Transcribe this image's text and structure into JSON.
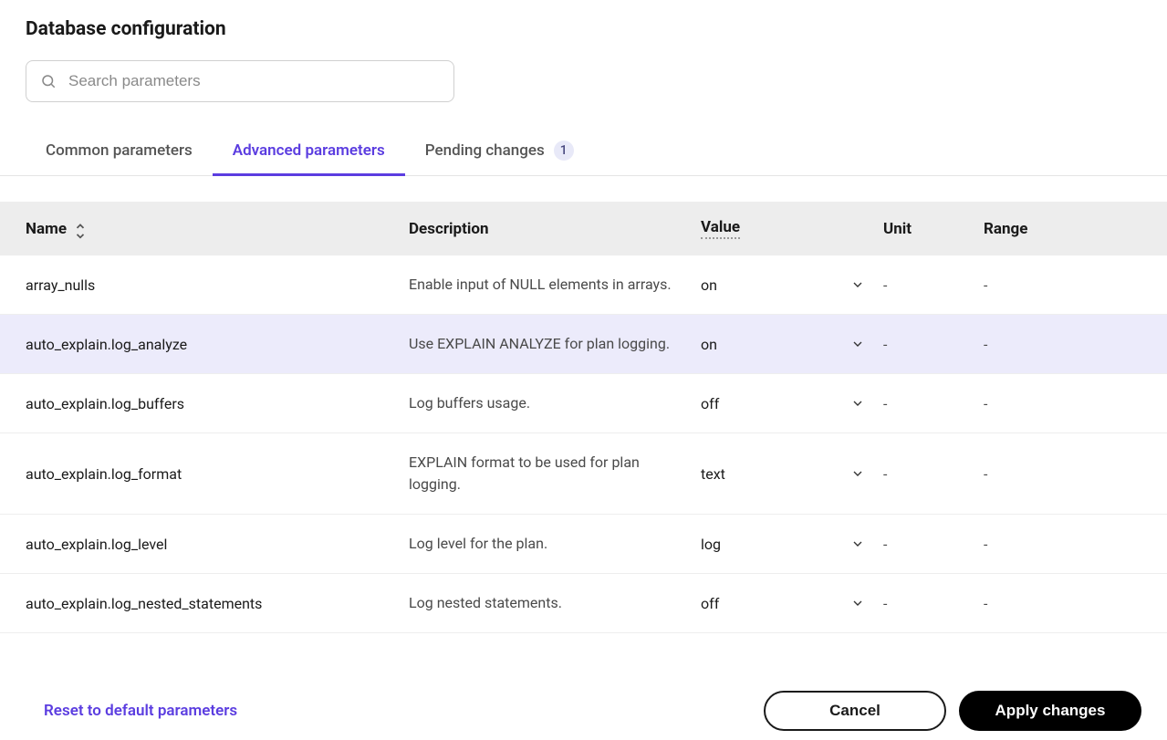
{
  "page": {
    "title": "Database configuration"
  },
  "search": {
    "placeholder": "Search parameters"
  },
  "tabs": {
    "common": "Common parameters",
    "advanced": "Advanced parameters",
    "pending": "Pending changes",
    "pending_count": "1"
  },
  "table": {
    "headers": {
      "name": "Name",
      "description": "Description",
      "value": "Value",
      "unit": "Unit",
      "range": "Range"
    },
    "rows": [
      {
        "name": "array_nulls",
        "description": "Enable input of NULL elements in arrays.",
        "value": "on",
        "unit": "-",
        "range": "-",
        "highlighted": false
      },
      {
        "name": "auto_explain.log_analyze",
        "description": "Use EXPLAIN ANALYZE for plan logging.",
        "value": "on",
        "unit": "-",
        "range": "-",
        "highlighted": true
      },
      {
        "name": "auto_explain.log_buffers",
        "description": "Log buffers usage.",
        "value": "off",
        "unit": "-",
        "range": "-",
        "highlighted": false
      },
      {
        "name": "auto_explain.log_format",
        "description": "EXPLAIN format to be used for plan logging.",
        "value": "text",
        "unit": "-",
        "range": "-",
        "highlighted": false
      },
      {
        "name": "auto_explain.log_level",
        "description": "Log level for the plan.",
        "value": "log",
        "unit": "-",
        "range": "-",
        "highlighted": false
      },
      {
        "name": "auto_explain.log_nested_statements",
        "description": "Log nested statements.",
        "value": "off",
        "unit": "-",
        "range": "-",
        "highlighted": false
      }
    ]
  },
  "footer": {
    "reset": "Reset to default parameters",
    "cancel": "Cancel",
    "apply": "Apply changes"
  },
  "colors": {
    "accent": "#5b3de0",
    "badge_bg": "#e8e9f8",
    "row_highlight": "#ecebfb",
    "header_bg": "#ededed"
  }
}
